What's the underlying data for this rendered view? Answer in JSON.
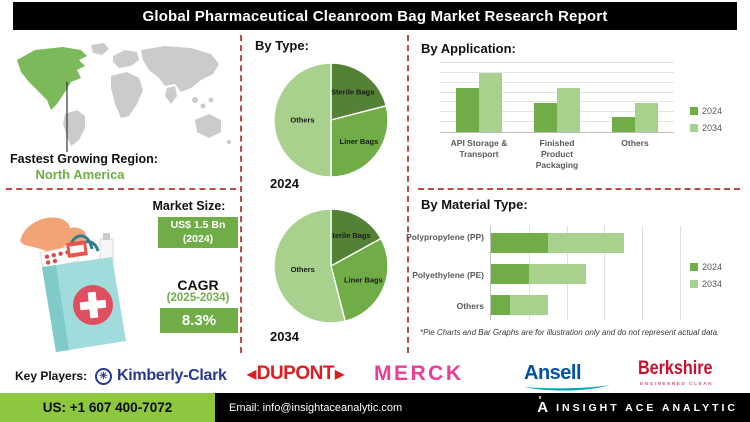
{
  "title": "Global Pharmaceutical Cleanroom Bag Market Research Report",
  "colors": {
    "green_dark": "#538135",
    "green_mid": "#70AD47",
    "green_light": "#A9D18E",
    "map_green": "#7CB95B",
    "map_gray": "#CBCBCB",
    "dash_red": "#BE4B48",
    "footer_green": "#8DC63F"
  },
  "region": {
    "heading": "Fastest Growing Region:",
    "value": "North America"
  },
  "market": {
    "size_label": "Market Size:",
    "size_value": "US$ 1.5 Bn",
    "size_year": "(2024)",
    "cagr_label": "CAGR",
    "cagr_period": "(2025-2034)",
    "cagr_value": "8.3%"
  },
  "chart_data": [
    {
      "type": "pie",
      "title": "By Type:",
      "year": "2024",
      "labels": [
        "Sterile Bags",
        "Liner Bags",
        "Others"
      ],
      "values": [
        21,
        29,
        50
      ],
      "colors": [
        "#538135",
        "#70AD47",
        "#A9D18E"
      ]
    },
    {
      "type": "pie",
      "title": "By Type:",
      "year": "2034",
      "labels": [
        "Sterile Bags",
        "Liner Bags",
        "Others"
      ],
      "values": [
        17,
        29,
        54
      ],
      "colors": [
        "#538135",
        "#70AD47",
        "#A9D18E"
      ]
    },
    {
      "type": "bar",
      "title": "By Application:",
      "categories": [
        "API Storage & Transport",
        "Finished Product Packaging",
        "Others"
      ],
      "series": [
        {
          "name": "2024",
          "color": "#70AD47",
          "values": [
            65,
            43,
            22
          ]
        },
        {
          "name": "2034",
          "color": "#A9D18E",
          "values": [
            87,
            65,
            43
          ]
        }
      ],
      "ylim": [
        0,
        100
      ],
      "grid": true,
      "legend_position": "right"
    },
    {
      "type": "stacked_hbar",
      "title": "By Material Type:",
      "categories": [
        "Polypropylene (PP)",
        "Polyethylene (PE)",
        "Others"
      ],
      "series": [
        {
          "name": "2024",
          "color": "#70AD47",
          "values": [
            30,
            20,
            10
          ]
        },
        {
          "name": "2034",
          "color": "#A9D18E",
          "values": [
            40,
            30,
            20
          ]
        }
      ],
      "xlim": [
        0,
        100
      ],
      "grid": true,
      "legend_position": "right",
      "note": "*Pie Charts and Bar Graphs are for illustration only and do not represent actual data."
    }
  ],
  "key_players": {
    "label": "Key Players:",
    "players": [
      {
        "name": "Kimberly-Clark"
      },
      {
        "name": "DUPONT"
      },
      {
        "name": "MERCK"
      },
      {
        "name": "Ansell"
      },
      {
        "name": "Berkshire",
        "tagline": "ENGINEERED CLEAN"
      }
    ]
  },
  "footer": {
    "phone": "US: +1 607 400-7072",
    "email": "Email: info@insightaceanalytic.com",
    "brand": "INSIGHT ACE ANALYTIC"
  }
}
